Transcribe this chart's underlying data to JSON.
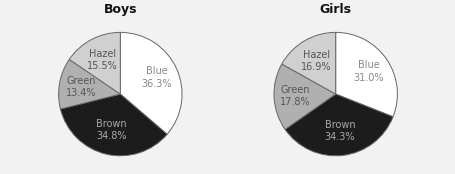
{
  "boys": {
    "title": "Boys",
    "values": [
      36.3,
      34.8,
      13.4,
      15.5
    ],
    "colors": [
      "#ffffff",
      "#1c1c1c",
      "#b0b0b0",
      "#d0d0d0"
    ],
    "label_texts": [
      "Blue\n36.3%",
      "Brown\n34.8%",
      "Green\n13.4%",
      "Hazel\n15.5%"
    ],
    "label_colors": [
      "#888888",
      "#aaaaaa",
      "#555555",
      "#555555"
    ],
    "label_r": [
      0.65,
      0.6,
      0.65,
      0.62
    ]
  },
  "girls": {
    "title": "Girls",
    "values": [
      31.0,
      34.3,
      17.8,
      16.9
    ],
    "colors": [
      "#ffffff",
      "#1c1c1c",
      "#b0b0b0",
      "#d0d0d0"
    ],
    "label_texts": [
      "Blue\n31.0%",
      "Brown\n34.3%",
      "Green\n17.8%",
      "Hazel\n16.9%"
    ],
    "label_colors": [
      "#888888",
      "#aaaaaa",
      "#555555",
      "#555555"
    ],
    "label_r": [
      0.65,
      0.6,
      0.65,
      0.62
    ]
  },
  "startangle": 90,
  "counterclock": false,
  "edge_color": "#666666",
  "edge_linewidth": 0.7,
  "background_color": "#f2f2f2",
  "title_fontsize": 9,
  "label_fontsize": 7
}
